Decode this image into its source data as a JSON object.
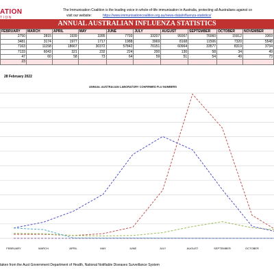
{
  "header": {
    "logo_text": "ATION",
    "logo_subtext": "TION",
    "intro_text": "The Immunisation Coalition is the leading voice in whole-of-life immunisation in Australia, protecting all Australians against co",
    "website_label": "visit our website:",
    "website_url": "https://www.immunisationcoalition.org.au/news-data/influenza-statistics/"
  },
  "banner_title": "ANNUAL AUSTRALIAN INFLUENZA STATISTICS",
  "table": {
    "headers": [
      "FEBRUARY",
      "MARCH",
      "APRIL",
      "MAY",
      "JUNE",
      "JULY",
      "AUGUST",
      "SEPTEMBER",
      "OCTOBER",
      "NOVEMBER"
    ],
    "rows": [
      [
        "2750",
        "2815",
        "1939",
        "3285",
        "7793",
        "33207",
        "99367",
        "76060",
        "15912",
        "3369"
      ],
      [
        "3481",
        "3174",
        "1977",
        "1717",
        "1988",
        "3969",
        "8168",
        "11506",
        "7320",
        "5548"
      ],
      [
        "7163",
        "11158",
        "18667",
        "30372",
        "57842",
        "70151",
        "60964",
        "33577",
        "8319",
        "3734"
      ],
      [
        "7133",
        "6043",
        "321",
        "232",
        "224",
        "200",
        "130",
        "58",
        "34",
        "49"
      ],
      [
        "47",
        "60",
        "58",
        "73",
        "64",
        "59",
        "51",
        "54",
        "49",
        "73"
      ],
      [
        "23",
        "",
        "",
        "",
        "",
        "",
        "",
        "",
        "",
        ""
      ]
    ]
  },
  "report_date": "28 February 2022",
  "chart_data": {
    "type": "line",
    "title": "ANNUAL AUSTRALIAN LABORATORY CONFIRMED FLU NUMBERS",
    "categories": [
      "FEBRUARY",
      "MARCH",
      "APRIL",
      "MAY",
      "JUNE",
      "JULY",
      "AUGUST",
      "SEPTEMBER",
      "OCTOBER",
      "NOVEMBER"
    ],
    "ylim": [
      0,
      100000
    ],
    "grid": true,
    "series": [
      {
        "color": "#c0504d",
        "values": [
          2750,
          2815,
          1939,
          3285,
          7793,
          33207,
          99367,
          76060,
          15912,
          3369
        ]
      },
      {
        "color": "#9bbb59",
        "values": [
          3481,
          3174,
          1977,
          1717,
          1988,
          3969,
          8168,
          11506,
          7320,
          5548
        ]
      },
      {
        "color": "#4f4fc6",
        "values": [
          7163,
          11158,
          18667,
          30372,
          57842,
          70151,
          60964,
          33577,
          8319,
          3734
        ]
      },
      {
        "color": "#4bacc6",
        "values": [
          7133,
          6043,
          321,
          232,
          224,
          200,
          130,
          58,
          34,
          49
        ]
      },
      {
        "color": "#8064a2",
        "values": [
          47,
          60,
          58,
          73,
          64,
          59,
          51,
          54,
          49,
          73
        ]
      }
    ]
  },
  "source_note": "taken from the Aust Government Department of Health, National Notifiable Diseases Surveillance System"
}
